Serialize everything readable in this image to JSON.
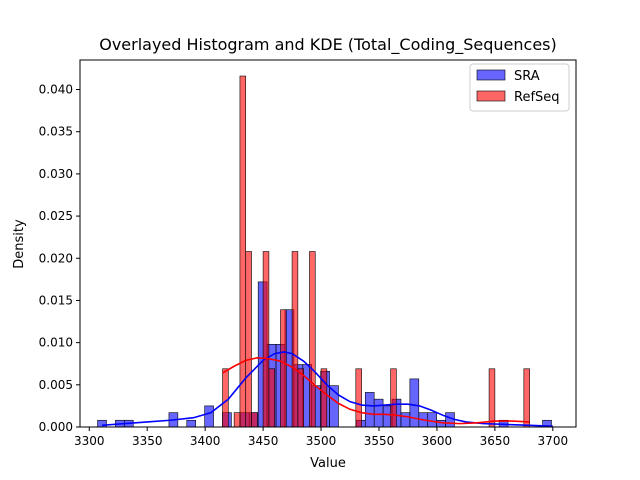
{
  "chart_data": {
    "type": "bar",
    "title": "Overlayed Histogram and KDE (Total_Coding_Sequences)",
    "xlabel": "Value",
    "ylabel": "Density",
    "xlim": [
      3292,
      3720
    ],
    "ylim": [
      0,
      0.0435
    ],
    "xticks": [
      "3300",
      "3350",
      "3400",
      "3450",
      "3500",
      "3550",
      "3600",
      "3650",
      "3700"
    ],
    "xtick_values": [
      3300,
      3350,
      3400,
      3450,
      3500,
      3550,
      3600,
      3650,
      3700
    ],
    "yticks": [
      "0.000",
      "0.005",
      "0.010",
      "0.015",
      "0.020",
      "0.025",
      "0.030",
      "0.035",
      "0.040"
    ],
    "ytick_values": [
      0,
      0.005,
      0.01,
      0.015,
      0.02,
      0.025,
      0.03,
      0.035,
      0.04
    ],
    "legend_position": "top-right",
    "series": [
      {
        "name": "SRA",
        "color": "#0000ff",
        "bin_width": 7.7,
        "bins": [
          {
            "x": 3311,
            "y": 0.0008
          },
          {
            "x": 3326.4,
            "y": 0.0008
          },
          {
            "x": 3334.1,
            "y": 0.0008
          },
          {
            "x": 3372.6,
            "y": 0.0017
          },
          {
            "x": 3388,
            "y": 0.0008
          },
          {
            "x": 3403.4,
            "y": 0.0025
          },
          {
            "x": 3418.8,
            "y": 0.0017
          },
          {
            "x": 3434.2,
            "y": 0.0017
          },
          {
            "x": 3441.9,
            "y": 0.0017
          },
          {
            "x": 3449.6,
            "y": 0.0172
          },
          {
            "x": 3457.3,
            "y": 0.0098
          },
          {
            "x": 3465,
            "y": 0.0098
          },
          {
            "x": 3472.7,
            "y": 0.0139
          },
          {
            "x": 3480.4,
            "y": 0.0074
          },
          {
            "x": 3488.1,
            "y": 0.0074
          },
          {
            "x": 3495.8,
            "y": 0.0049
          },
          {
            "x": 3503.5,
            "y": 0.0066
          },
          {
            "x": 3511.2,
            "y": 0.0049
          },
          {
            "x": 3534.3,
            "y": 0.0008
          },
          {
            "x": 3542,
            "y": 0.0041
          },
          {
            "x": 3549.7,
            "y": 0.0033
          },
          {
            "x": 3557.4,
            "y": 0.0025
          },
          {
            "x": 3565.1,
            "y": 0.0033
          },
          {
            "x": 3572.8,
            "y": 0.0017
          },
          {
            "x": 3580.5,
            "y": 0.0057
          },
          {
            "x": 3588.2,
            "y": 0.0017
          },
          {
            "x": 3595.9,
            "y": 0.0017
          },
          {
            "x": 3603.6,
            "y": 0.0008
          },
          {
            "x": 3611.3,
            "y": 0.0017
          },
          {
            "x": 3657.5,
            "y": 0.0008
          },
          {
            "x": 3695,
            "y": 0.0008
          }
        ],
        "kde": {
          "x": [
            3311,
            3330,
            3350,
            3370,
            3390,
            3405,
            3420,
            3435,
            3450,
            3460,
            3468,
            3475,
            3485,
            3495,
            3505,
            3515,
            3525,
            3535,
            3545,
            3555,
            3565,
            3575,
            3585,
            3595,
            3605,
            3615,
            3625,
            3640,
            3660,
            3680,
            3700
          ],
          "y": [
            0.0002,
            0.0004,
            0.0006,
            0.0008,
            0.0011,
            0.0017,
            0.0033,
            0.0058,
            0.0079,
            0.0087,
            0.0089,
            0.0087,
            0.0078,
            0.0065,
            0.005,
            0.0038,
            0.003,
            0.0026,
            0.0025,
            0.0026,
            0.0027,
            0.0027,
            0.0025,
            0.002,
            0.0014,
            0.0009,
            0.0006,
            0.0004,
            0.0003,
            0.0002,
            0.0001
          ]
        }
      },
      {
        "name": "RefSeq",
        "color": "#ff0000",
        "bin_width": 5,
        "bins": [
          {
            "x": 3417.5,
            "y": 0.0069
          },
          {
            "x": 3427.5,
            "y": 0.0017
          },
          {
            "x": 3432.5,
            "y": 0.0416
          },
          {
            "x": 3437.5,
            "y": 0.0208
          },
          {
            "x": 3442.5,
            "y": 0.0017
          },
          {
            "x": 3452.5,
            "y": 0.0208
          },
          {
            "x": 3457.5,
            "y": 0.0069
          },
          {
            "x": 3467.5,
            "y": 0.0139
          },
          {
            "x": 3477.5,
            "y": 0.0208
          },
          {
            "x": 3482.5,
            "y": 0.0069
          },
          {
            "x": 3492.5,
            "y": 0.0208
          },
          {
            "x": 3502.5,
            "y": 0.0069
          },
          {
            "x": 3532.5,
            "y": 0.0069
          },
          {
            "x": 3562.5,
            "y": 0.0069
          },
          {
            "x": 3647.5,
            "y": 0.0069
          },
          {
            "x": 3677.5,
            "y": 0.0069
          }
        ],
        "kde": {
          "x": [
            3415,
            3425,
            3435,
            3445,
            3455,
            3465,
            3475,
            3485,
            3495,
            3505,
            3515,
            3525,
            3535,
            3545,
            3555,
            3565,
            3575,
            3590,
            3605,
            3620,
            3635,
            3650,
            3665,
            3680
          ],
          "y": [
            0.0064,
            0.0072,
            0.0079,
            0.0082,
            0.0081,
            0.0078,
            0.0071,
            0.0061,
            0.0049,
            0.0038,
            0.0028,
            0.0021,
            0.0017,
            0.0015,
            0.0015,
            0.0014,
            0.0012,
            0.0008,
            0.0005,
            0.0004,
            0.0005,
            0.0007,
            0.0007,
            0.0006
          ]
        }
      }
    ]
  }
}
